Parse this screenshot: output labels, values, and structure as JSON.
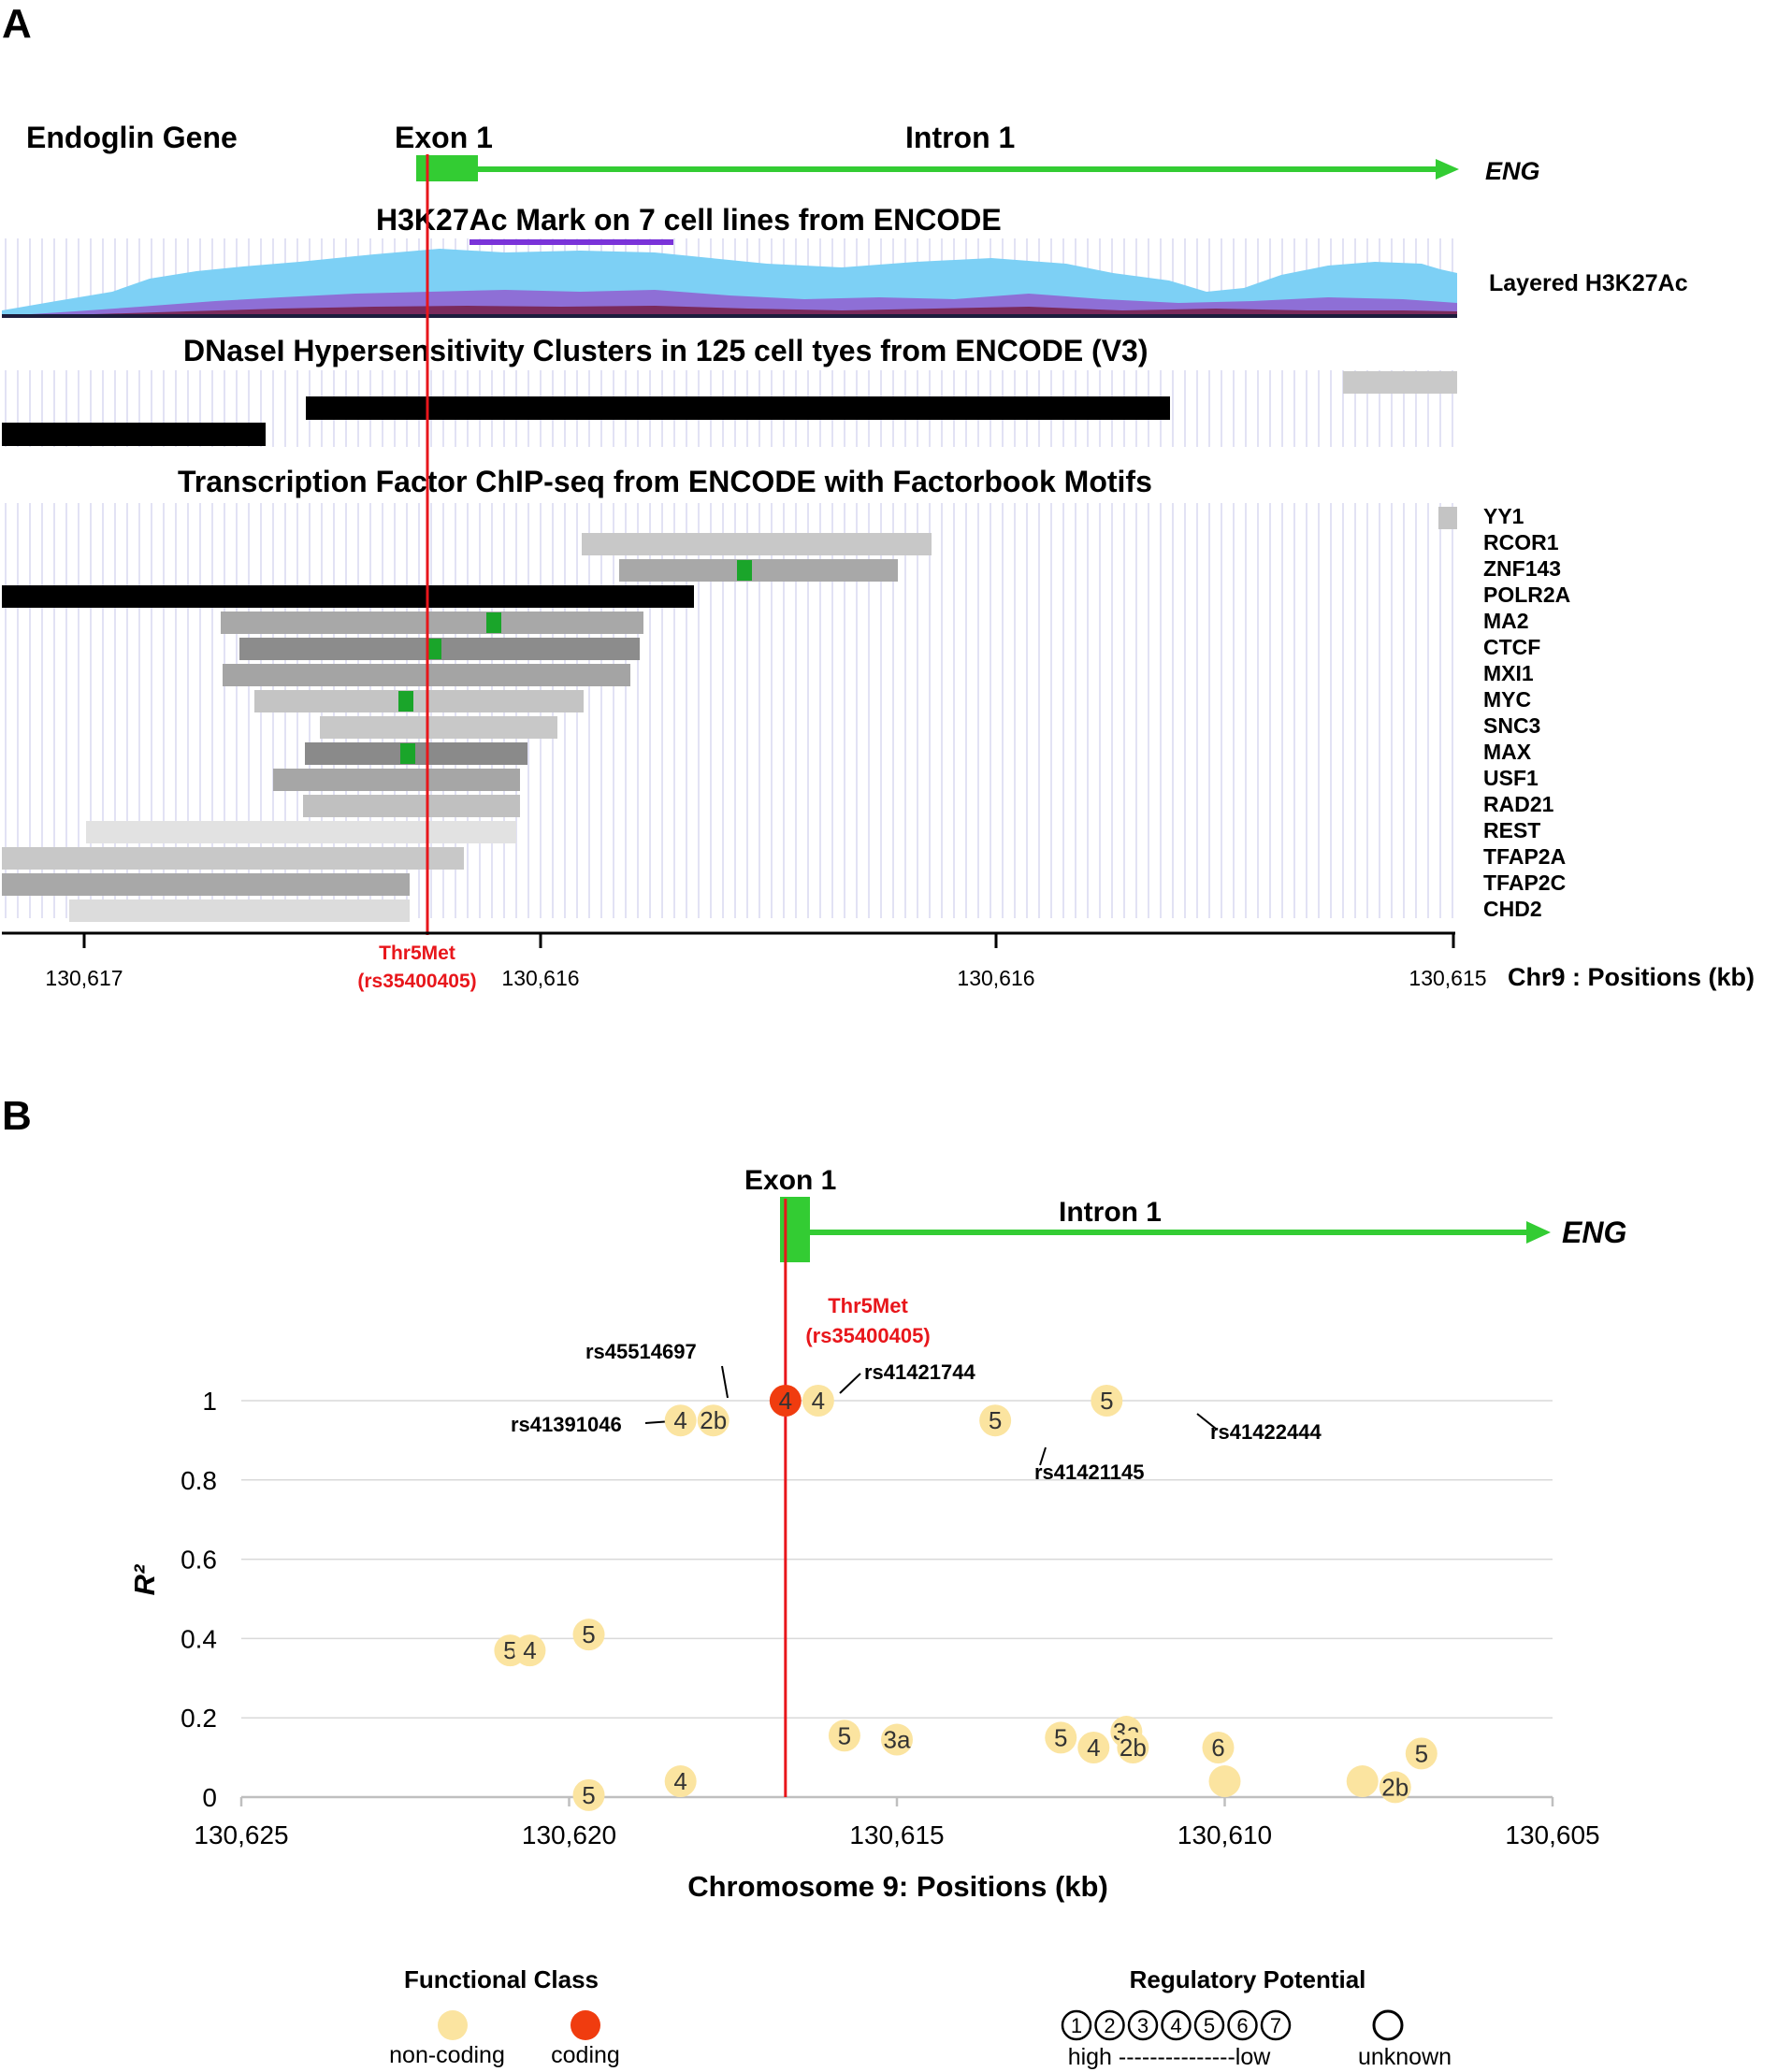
{
  "panel_a": {
    "label": "A",
    "gene_label": "Endoglin Gene",
    "exon_label": "Exon 1",
    "intron_label": "Intron 1",
    "gene_name": "ENG",
    "h3k27ac_title": "H3K27Ac Mark on 7 cell lines from ENCODE",
    "h3k27ac_side_label": "Layered H3K27Ac",
    "dnase_title": "DNaseI Hypersensitivity Clusters in 125 cell tyes from ENCODE (V3)",
    "tf_title": "Transcription Factor ChIP-seq from ENCODE with Factorbook Motifs",
    "tf_names": [
      "YY1",
      "RCOR1",
      "ZNF143",
      "POLR2A",
      "MA2",
      "CTCF",
      "MXI1",
      "MYC",
      "SNC3",
      "MAX",
      "USF1",
      "RAD21",
      "REST",
      "TFAP2A",
      "TFAP2C",
      "CHD2"
    ],
    "variant_line1": "Thr5Met",
    "variant_line2": "(rs35400405)",
    "axis_ticks": [
      "130,617",
      "130,616",
      "130,616",
      "130,615"
    ],
    "axis_label": "Chr9 : Positions (kb)",
    "colors": {
      "gene": "#33cc33",
      "variant": "#e8161b",
      "h3_light": "#7dd0f5",
      "h3_violet": "#8e6fd6",
      "h3_dark": "#7a2a5c",
      "bar_black": "#000000",
      "bar_grey": "#9a9a9a",
      "motif": "#1aa52a"
    }
  },
  "panel_b": {
    "label": "B",
    "exon_label": "Exon 1",
    "intron_label": "Intron 1",
    "gene_name": "ENG",
    "variant_line1": "Thr5Met",
    "variant_line2": "(rs35400405)",
    "legend": {
      "functional_title": "Functional  Class",
      "non_coding": "non-coding",
      "coding": "coding",
      "regulatory_title": "Regulatory  Potential",
      "reg_numbers": [
        "1",
        "2",
        "3",
        "4",
        "5",
        "6",
        "7"
      ],
      "scale_text": "high ---------------low",
      "unknown": "unknown",
      "colors": {
        "non_coding": "#fbe4a0",
        "coding": "#f03c0f"
      }
    }
  },
  "chart_data": {
    "type": "scatter",
    "title": "",
    "xlabel": "Chromosome 9: Positions (kb)",
    "ylabel": "R²",
    "xlim": [
      130625,
      130605
    ],
    "ylim": [
      0,
      1
    ],
    "x_ticks": [
      "130,625",
      "130,620",
      "130,615",
      "130,610",
      "130,605"
    ],
    "x_tick_values": [
      130625,
      130620,
      130615,
      130610,
      130605
    ],
    "y_ticks": [
      "0",
      "0.2",
      "0.4",
      "0.6",
      "0.8",
      "1"
    ],
    "y_tick_values": [
      0,
      0.2,
      0.4,
      0.6,
      0.8,
      1
    ],
    "variant_position": 130616.7,
    "points": [
      {
        "x": 130616.7,
        "y": 1.0,
        "label": "4",
        "class": "coding",
        "rsid": ""
      },
      {
        "x": 130616.2,
        "y": 1.0,
        "label": "4",
        "class": "non-coding",
        "rsid": "rs41421744"
      },
      {
        "x": 130611.8,
        "y": 1.0,
        "label": "5",
        "class": "non-coding",
        "rsid": "rs41422444"
      },
      {
        "x": 130613.5,
        "y": 0.95,
        "label": "5",
        "class": "non-coding",
        "rsid": "rs41421145"
      },
      {
        "x": 130618.3,
        "y": 0.95,
        "label": "4",
        "class": "non-coding",
        "rsid": "rs41391046"
      },
      {
        "x": 130617.8,
        "y": 0.95,
        "label": "2b",
        "class": "non-coding",
        "rsid": "rs45514697"
      },
      {
        "x": 130620.9,
        "y": 0.37,
        "label": "5",
        "class": "non-coding",
        "rsid": ""
      },
      {
        "x": 130620.6,
        "y": 0.37,
        "label": "4",
        "class": "non-coding",
        "rsid": ""
      },
      {
        "x": 130619.7,
        "y": 0.41,
        "label": "5",
        "class": "non-coding",
        "rsid": ""
      },
      {
        "x": 130615.8,
        "y": 0.155,
        "label": "5",
        "class": "non-coding",
        "rsid": ""
      },
      {
        "x": 130615.0,
        "y": 0.145,
        "label": "3a",
        "class": "non-coding",
        "rsid": ""
      },
      {
        "x": 130612.5,
        "y": 0.15,
        "label": "5",
        "class": "non-coding",
        "rsid": ""
      },
      {
        "x": 130611.5,
        "y": 0.165,
        "label": "3a",
        "class": "non-coding",
        "rsid": ""
      },
      {
        "x": 130612.0,
        "y": 0.125,
        "label": "4",
        "class": "non-coding",
        "rsid": ""
      },
      {
        "x": 130611.4,
        "y": 0.125,
        "label": "2b",
        "class": "non-coding",
        "rsid": ""
      },
      {
        "x": 130610.1,
        "y": 0.125,
        "label": "6",
        "class": "non-coding",
        "rsid": ""
      },
      {
        "x": 130610.0,
        "y": 0.04,
        "label": "",
        "class": "non-coding",
        "rsid": ""
      },
      {
        "x": 130607.9,
        "y": 0.04,
        "label": "",
        "class": "non-coding",
        "rsid": ""
      },
      {
        "x": 130607.4,
        "y": 0.025,
        "label": "2b",
        "class": "non-coding",
        "rsid": ""
      },
      {
        "x": 130607.0,
        "y": 0.11,
        "label": "5",
        "class": "non-coding",
        "rsid": ""
      },
      {
        "x": 130618.3,
        "y": 0.04,
        "label": "4",
        "class": "non-coding",
        "rsid": ""
      },
      {
        "x": 130619.7,
        "y": 0.005,
        "label": "5",
        "class": "non-coding",
        "rsid": ""
      }
    ]
  }
}
